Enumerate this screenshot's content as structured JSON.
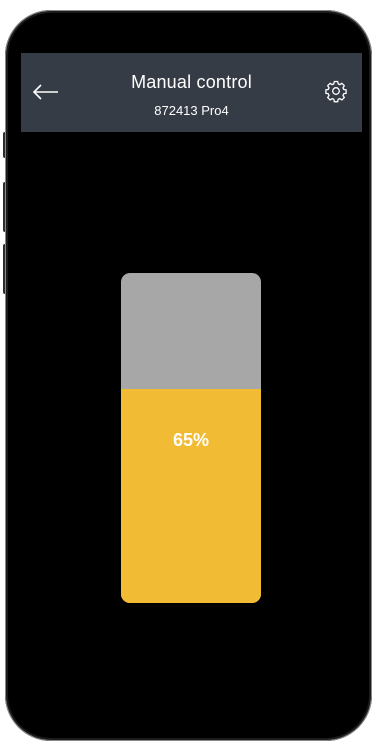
{
  "header": {
    "title": "Manual control",
    "subtitle": "872413 Pro4",
    "back_icon": "arrow-left-icon",
    "settings_icon": "gear-icon"
  },
  "level_slider": {
    "value_percent": 65,
    "label": "65%",
    "fill_color": "#f2bb34",
    "track_color": "#a7a7a7"
  },
  "colors": {
    "background": "#000000",
    "header_bg": "#363c45"
  }
}
